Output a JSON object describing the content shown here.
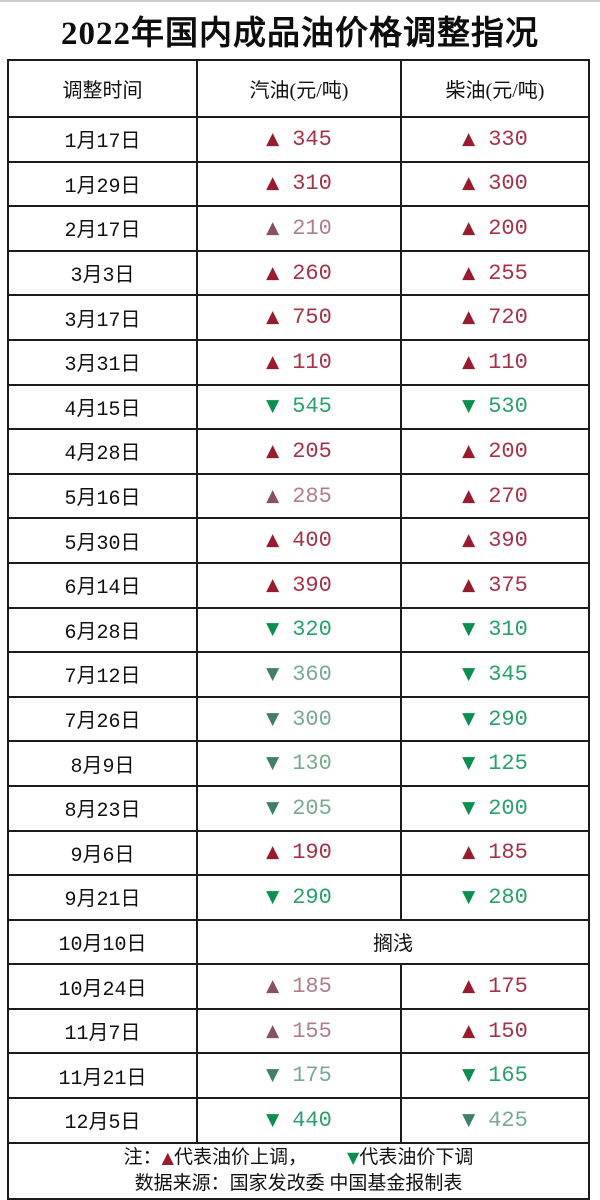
{
  "title": "2022年国内成品油价格调整指况",
  "symbols": {
    "up": "▲",
    "down": "▼"
  },
  "colors": {
    "up_triangle": "#991c2e",
    "up_value": "#a83146",
    "up_triangle_muted": "#8a5260",
    "up_value_muted": "#b07e8a",
    "down_triangle": "#0a8f4f",
    "down_value": "#27a268",
    "down_triangle_muted": "#418066",
    "down_value_muted": "#79aa90",
    "border": "#1c1c1c",
    "ink": "#111111"
  },
  "table": {
    "headers": [
      "调整时间",
      "汽油(元/吨)",
      "柴油(元/吨)"
    ],
    "rows": [
      {
        "date": "1月17日",
        "cells": [
          {
            "dir": "up",
            "value": "345"
          },
          {
            "dir": "up",
            "value": "330"
          }
        ]
      },
      {
        "date": "1月29日",
        "cells": [
          {
            "dir": "up",
            "value": "310"
          },
          {
            "dir": "up",
            "value": "300"
          }
        ]
      },
      {
        "date": "2月17日",
        "cells": [
          {
            "dir": "up",
            "value": "210",
            "muted": true
          },
          {
            "dir": "up",
            "value": "200"
          }
        ]
      },
      {
        "date": "3月3日",
        "cells": [
          {
            "dir": "up",
            "value": "260"
          },
          {
            "dir": "up",
            "value": "255"
          }
        ]
      },
      {
        "date": "3月17日",
        "cells": [
          {
            "dir": "up",
            "value": "750"
          },
          {
            "dir": "up",
            "value": "720"
          }
        ]
      },
      {
        "date": "3月31日",
        "cells": [
          {
            "dir": "up",
            "value": "110"
          },
          {
            "dir": "up",
            "value": "110"
          }
        ]
      },
      {
        "date": "4月15日",
        "cells": [
          {
            "dir": "down",
            "value": "545"
          },
          {
            "dir": "down",
            "value": "530"
          }
        ]
      },
      {
        "date": "4月28日",
        "cells": [
          {
            "dir": "up",
            "value": "205"
          },
          {
            "dir": "up",
            "value": "200"
          }
        ]
      },
      {
        "date": "5月16日",
        "cells": [
          {
            "dir": "up",
            "value": "285",
            "muted": true
          },
          {
            "dir": "up",
            "value": "270"
          }
        ]
      },
      {
        "date": "5月30日",
        "cells": [
          {
            "dir": "up",
            "value": "400"
          },
          {
            "dir": "up",
            "value": "390"
          }
        ]
      },
      {
        "date": "6月14日",
        "cells": [
          {
            "dir": "up",
            "value": "390"
          },
          {
            "dir": "up",
            "value": "375"
          }
        ]
      },
      {
        "date": "6月28日",
        "cells": [
          {
            "dir": "down",
            "value": "320"
          },
          {
            "dir": "down",
            "value": "310"
          }
        ]
      },
      {
        "date": "7月12日",
        "cells": [
          {
            "dir": "down",
            "value": "360",
            "muted": true
          },
          {
            "dir": "down",
            "value": "345"
          }
        ]
      },
      {
        "date": "7月26日",
        "cells": [
          {
            "dir": "down",
            "value": "300",
            "muted": true
          },
          {
            "dir": "down",
            "value": "290"
          }
        ]
      },
      {
        "date": "8月9日",
        "cells": [
          {
            "dir": "down",
            "value": "130",
            "muted": true
          },
          {
            "dir": "down",
            "value": "125"
          }
        ]
      },
      {
        "date": "8月23日",
        "cells": [
          {
            "dir": "down",
            "value": "205",
            "muted": true
          },
          {
            "dir": "down",
            "value": "200"
          }
        ]
      },
      {
        "date": "9月6日",
        "cells": [
          {
            "dir": "up",
            "value": "190"
          },
          {
            "dir": "up",
            "value": "185"
          }
        ]
      },
      {
        "date": "9月21日",
        "cells": [
          {
            "dir": "down",
            "value": "290"
          },
          {
            "dir": "down",
            "value": "280"
          }
        ]
      },
      {
        "date": "10月10日",
        "merged": "搁浅"
      },
      {
        "date": "10月24日",
        "cells": [
          {
            "dir": "up",
            "value": "185",
            "muted": true
          },
          {
            "dir": "up",
            "value": "175"
          }
        ]
      },
      {
        "date": "11月7日",
        "cells": [
          {
            "dir": "up",
            "value": "155",
            "muted": true
          },
          {
            "dir": "up",
            "value": "150"
          }
        ]
      },
      {
        "date": "11月21日",
        "cells": [
          {
            "dir": "down",
            "value": "175",
            "muted": true
          },
          {
            "dir": "down",
            "value": "165"
          }
        ]
      },
      {
        "date": "12月5日",
        "cells": [
          {
            "dir": "down",
            "value": "440"
          },
          {
            "dir": "down",
            "value": "425",
            "muted": true
          }
        ]
      }
    ]
  },
  "footer": {
    "note_prefix": "注：",
    "up_symbol": "▲",
    "note_up": "代表油价上调，",
    "down_symbol": "▼",
    "note_down": "代表油价下调",
    "source": "数据来源：国家发改委 中国基金报制表"
  },
  "chart_data": {
    "type": "table",
    "title": "2022年国内成品油价格调整指况",
    "columns": [
      "调整时间",
      "汽油(元/吨)",
      "柴油(元/吨)"
    ],
    "rows": [
      [
        "1月17日",
        345,
        330
      ],
      [
        "1月29日",
        310,
        300
      ],
      [
        "2月17日",
        210,
        200
      ],
      [
        "3月3日",
        260,
        255
      ],
      [
        "3月17日",
        750,
        720
      ],
      [
        "3月31日",
        110,
        110
      ],
      [
        "4月15日",
        -545,
        -530
      ],
      [
        "4月28日",
        205,
        200
      ],
      [
        "5月16日",
        285,
        270
      ],
      [
        "5月30日",
        400,
        390
      ],
      [
        "6月14日",
        390,
        375
      ],
      [
        "6月28日",
        -320,
        -310
      ],
      [
        "7月12日",
        -360,
        -345
      ],
      [
        "7月26日",
        -300,
        -290
      ],
      [
        "8月9日",
        -130,
        -125
      ],
      [
        "8月23日",
        -205,
        -200
      ],
      [
        "9月6日",
        190,
        185
      ],
      [
        "9月21日",
        -290,
        -280
      ],
      [
        "10月10日",
        "搁浅",
        "搁浅"
      ],
      [
        "10月24日",
        185,
        175
      ],
      [
        "11月7日",
        155,
        150
      ],
      [
        "11月21日",
        -175,
        -165
      ],
      [
        "12月5日",
        -440,
        -425
      ]
    ],
    "legend": "▲代表油价上调，▼代表油价下调",
    "source": "数据来源：国家发改委 中国基金报制表"
  }
}
